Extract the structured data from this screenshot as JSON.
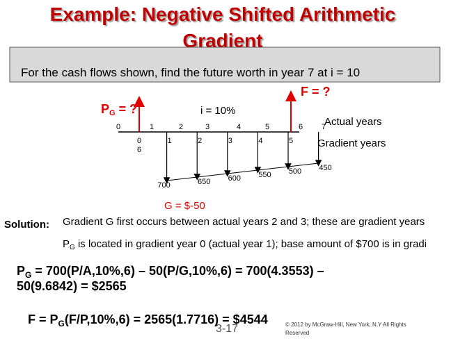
{
  "title": [
    "Example: Negative Shifted Arithmetic",
    "Gradient"
  ],
  "banner": "For the cash flows shown, find the future worth in year 7 at i = 10",
  "diagram": {
    "pg_label": [
      "P",
      "G",
      " = ?"
    ],
    "f_label": "F = ?",
    "rate": "i = 10%",
    "actual_years": [
      "0",
      "1",
      "2",
      "3",
      "4",
      "5",
      "6",
      "7"
    ],
    "actual_years_label": "Actual years",
    "gradient_years": [
      "0",
      "1",
      "2",
      "3",
      "4",
      "5"
    ],
    "gradient_extra": "6",
    "gradient_years_label": "Gradient years",
    "cash_flows": [
      700,
      650,
      600,
      550,
      500,
      450
    ],
    "gradient": "G = $-50"
  },
  "solution": {
    "label": "Solution:",
    "line1": "Gradient G first occurs between actual years 2 and 3; these are gradient years",
    "line2": [
      "P",
      "G",
      " is located in gradient year 0 (actual year 1); base amount of $700 is in gradi"
    ]
  },
  "equation1": [
    "P",
    "G",
    " = 700(P/A,10%,6) – 50(P/G,10%,6) = 700(4.3553) –",
    "50(9.6842) = $2565"
  ],
  "equation2": [
    "F = P",
    "G",
    "(F/P,10%,6) = 2565(1.7716) = $4544"
  ],
  "page_number": "3-17",
  "copyright": [
    "© 2012 by McGraw-Hill, New York, N.Y All Rights",
    "Reserved"
  ]
}
